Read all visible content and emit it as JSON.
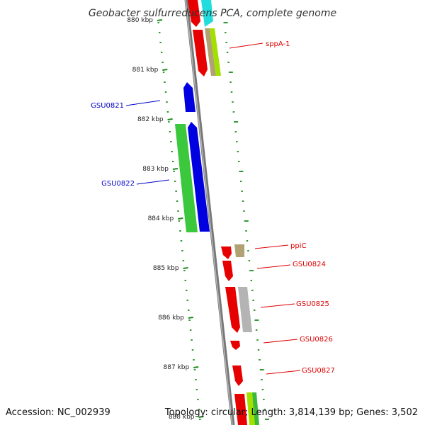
{
  "title": "Geobacter sulfurreducens PCA, complete genome",
  "footer": {
    "accession": "Accession: NC_002939",
    "summary": "Topology: circular; Length: 3,814,139 bp; Genes: 3,502"
  },
  "colors": {
    "backbone": "#8c8c8c",
    "tick": "#1e8c1e",
    "forward_label": "#0000c8",
    "reverse_label": "#dc0000"
  },
  "kbp_ticks": [
    {
      "kbp": 880,
      "label": "880 kbp"
    },
    {
      "kbp": 881,
      "label": "881 kbp"
    },
    {
      "kbp": 882,
      "label": "882 kbp"
    },
    {
      "kbp": 883,
      "label": "883 kbp"
    },
    {
      "kbp": 884,
      "label": "884 kbp"
    },
    {
      "kbp": 885,
      "label": "885 kbp"
    },
    {
      "kbp": 886,
      "label": "886 kbp"
    },
    {
      "kbp": 887,
      "label": "887 kbp"
    },
    {
      "kbp": 888,
      "label": "888 kbp"
    }
  ],
  "gene_labels": [
    {
      "name": "sppA-1",
      "strand": "reverse"
    },
    {
      "name": "GSU0821",
      "strand": "forward"
    },
    {
      "name": "GSU0822",
      "strand": "forward"
    },
    {
      "name": "ppiC",
      "strand": "reverse"
    },
    {
      "name": "GSU0824",
      "strand": "reverse"
    },
    {
      "name": "GSU0825",
      "strand": "reverse"
    },
    {
      "name": "GSU0826",
      "strand": "reverse"
    },
    {
      "name": "GSU0827",
      "strand": "reverse"
    }
  ]
}
